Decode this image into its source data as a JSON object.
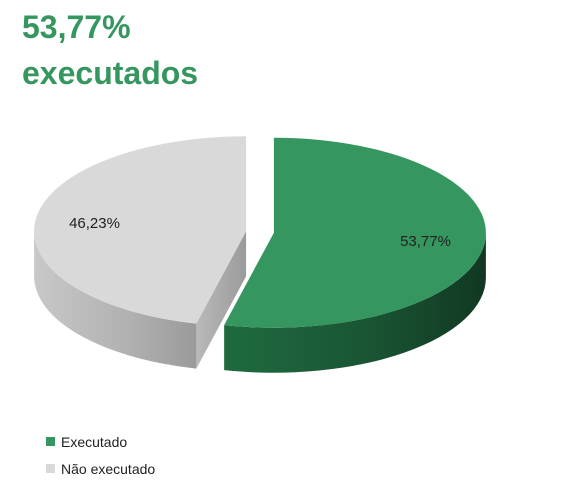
{
  "headline": {
    "line1": "53,77%",
    "line2": "executados"
  },
  "chart_data": {
    "type": "pie",
    "style": "3d-exploded",
    "title": "",
    "series": [
      {
        "name": "Executado",
        "value": 53.77,
        "label": "53,77%",
        "color": "#35965f"
      },
      {
        "name": "Não executado",
        "value": 46.23,
        "label": "46,23%",
        "color": "#d9d9d9"
      }
    ],
    "legend": {
      "placement": "bottom-left",
      "items": [
        {
          "label": "Executado",
          "color": "#35965f"
        },
        {
          "label": "Não executado",
          "color": "#d9d9d9"
        }
      ]
    }
  },
  "colors": {
    "accent": "#35965f",
    "accent_dark": "#1d5c37",
    "grey": "#d9d9d9",
    "grey_dark": "#a8a8a8"
  }
}
